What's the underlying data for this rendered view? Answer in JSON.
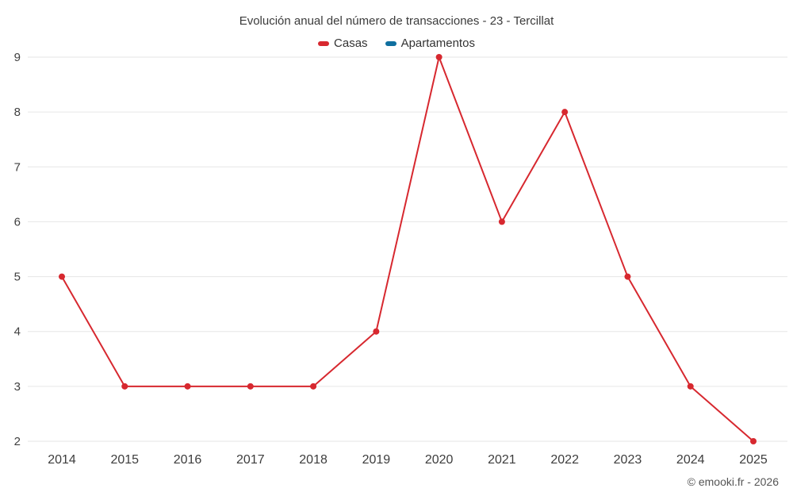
{
  "chart_data": {
    "type": "line",
    "title": "Evolución anual del número de transacciones - 23 - Tercillat",
    "x": [
      2014,
      2015,
      2016,
      2017,
      2018,
      2019,
      2020,
      2021,
      2022,
      2023,
      2024,
      2025
    ],
    "ylim": [
      2,
      9
    ],
    "ytick_step": 1,
    "grid": true,
    "legend_position": "top",
    "series": [
      {
        "name": "Casas",
        "color": "#d7282f",
        "values": [
          5,
          3,
          3,
          3,
          3,
          4,
          9,
          6,
          8,
          5,
          3,
          2
        ]
      },
      {
        "name": "Apartamentos",
        "color": "#0f6f9f",
        "values": []
      }
    ]
  },
  "footer": {
    "credit": "© emooki.fr - 2026"
  }
}
